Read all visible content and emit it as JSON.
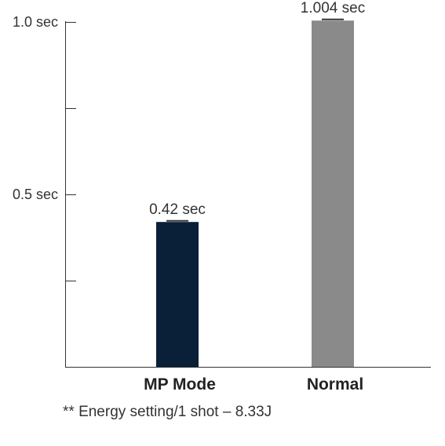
{
  "chart_data": {
    "type": "bar",
    "categories": [
      "MP Mode",
      "Normal"
    ],
    "values": [
      0.42,
      1.004
    ],
    "data_labels": [
      "0.42 sec",
      "1.004 sec"
    ],
    "bar_colors": [
      "#0a1f38",
      "#8a8a8a"
    ],
    "y_ticks": [
      {
        "value": 1.0,
        "label": "1.0 sec"
      },
      {
        "value": 0.75,
        "label": ""
      },
      {
        "value": 0.5,
        "label": "0.5 sec"
      },
      {
        "value": 0.25,
        "label": ""
      }
    ],
    "ylim": [
      0,
      1.0
    ],
    "grid": false,
    "legend": "none",
    "error_bar_color": "#333333"
  },
  "footnote": "** Energy setting/1 shot – 8.33J"
}
